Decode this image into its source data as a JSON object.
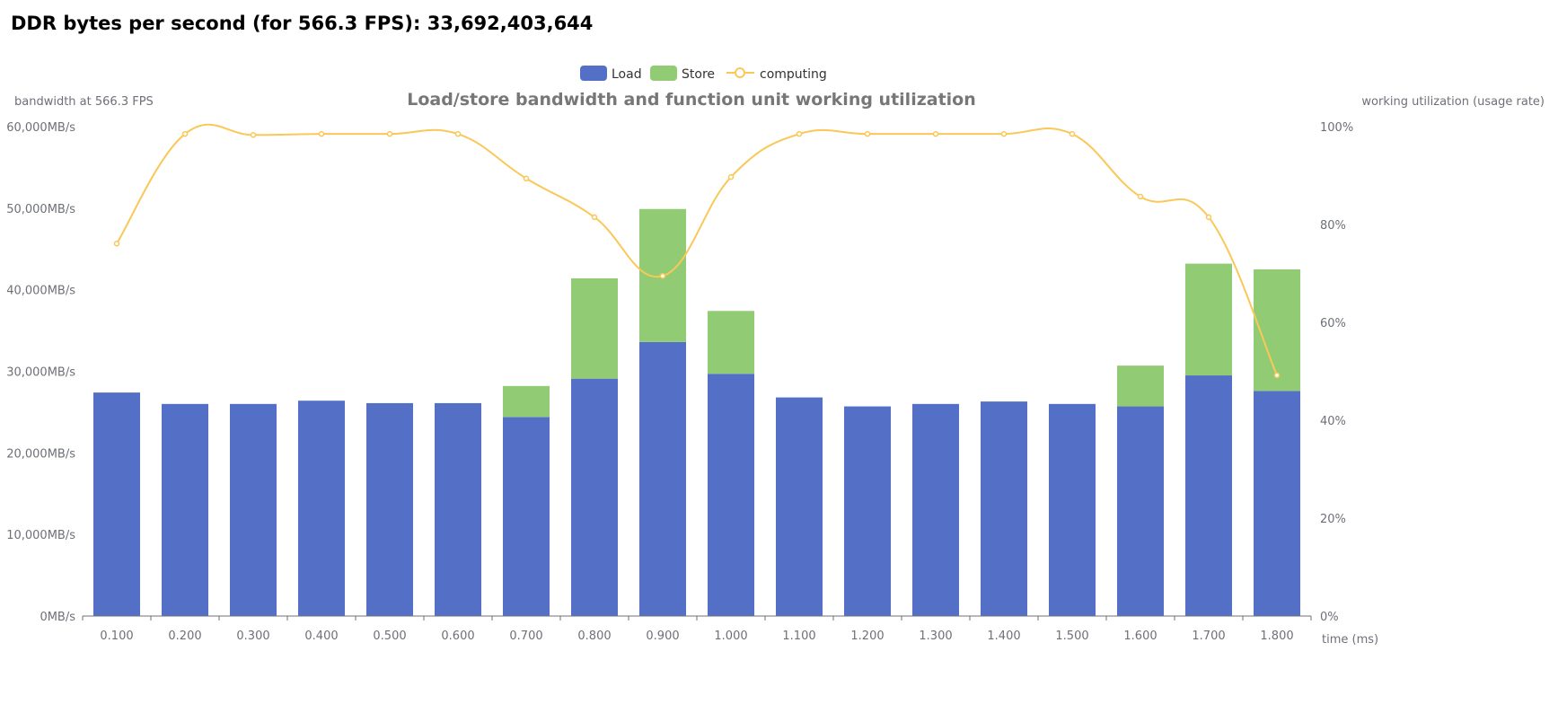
{
  "header": "DDR bytes per second (for 566.3 FPS): 33,692,403,644",
  "chart_data": {
    "type": "bar",
    "title": "Load/store bandwidth and function unit working utilization",
    "xlabel": "time (ms)",
    "ylabel": "bandwidth at 566.3 FPS",
    "y2label": "working utilization (usage rate)",
    "categories": [
      "0.100",
      "0.200",
      "0.300",
      "0.400",
      "0.500",
      "0.600",
      "0.700",
      "0.800",
      "0.900",
      "1.000",
      "1.100",
      "1.200",
      "1.300",
      "1.400",
      "1.500",
      "1.600",
      "1.700",
      "1.800"
    ],
    "ylim": [
      0,
      60000
    ],
    "y_ticks": [
      "0MB/s",
      "10,000MB/s",
      "20,000MB/s",
      "30,000MB/s",
      "40,000MB/s",
      "50,000MB/s",
      "60,000MB/s"
    ],
    "y2lim": [
      0,
      100
    ],
    "y2_ticks": [
      "0%",
      "20%",
      "40%",
      "60%",
      "80%",
      "100%"
    ],
    "legend_position": "top-center",
    "series": [
      {
        "name": "Load",
        "type": "bar",
        "stack": "bw",
        "color": "#5470c6",
        "values": [
          27400,
          26000,
          26000,
          26400,
          26100,
          26100,
          24400,
          29100,
          33600,
          29700,
          26800,
          25700,
          26000,
          26300,
          26000,
          25700,
          29500,
          27600
        ]
      },
      {
        "name": "Store",
        "type": "bar",
        "stack": "bw",
        "color": "#91cc75",
        "values": [
          0,
          0,
          0,
          0,
          0,
          0,
          3800,
          12300,
          16300,
          7700,
          0,
          0,
          0,
          0,
          0,
          5000,
          13700,
          14900
        ]
      },
      {
        "name": "computing",
        "type": "line",
        "axis": "right",
        "color": "#fac858",
        "values": [
          76.1,
          98.5,
          98.3,
          98.5,
          98.5,
          98.5,
          89.4,
          81.5,
          69.5,
          89.7,
          98.5,
          98.5,
          98.5,
          98.5,
          98.5,
          85.7,
          81.5,
          49.2
        ]
      }
    ]
  }
}
